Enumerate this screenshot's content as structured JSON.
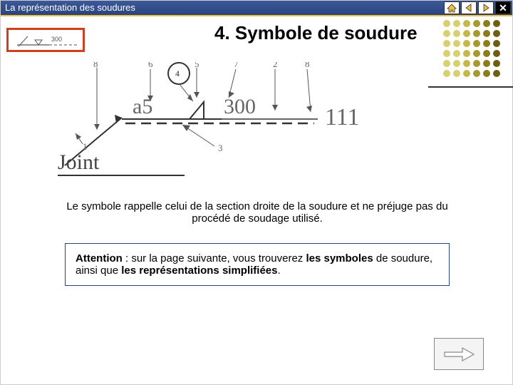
{
  "titlebar": {
    "title": "La représentation des soudures"
  },
  "heading": "4. Symbole de soudure",
  "diagram": {
    "a5": "a5",
    "d300": "300",
    "d111": "111",
    "numbers": {
      "n1": "1",
      "n2": "2",
      "n3": "3",
      "n4": "4",
      "n5": "5",
      "n6": "6",
      "n7": "7",
      "n8l": "8",
      "n8r": "8"
    },
    "joint_label": "Joint"
  },
  "description": "Le symbole rappelle celui de la section droite de la soudure et ne préjuge pas du procédé de soudage utilisé.",
  "attention": {
    "lead": "Attention",
    "part1": " : sur la page suivante, vous trouverez ",
    "bold1": "les symboles",
    "part2": " de soudure, ainsi que ",
    "bold2": "les représentations simplifiées",
    "part3": "."
  },
  "dots": {
    "colors": [
      "#d8d070",
      "#d8d070",
      "#c4b84a",
      "#a89830",
      "#8c7c1c",
      "#6e5e12"
    ],
    "rows": 6,
    "cols": 6,
    "r": 5,
    "gap": 14
  },
  "colors": {
    "titlebar_grad_top": "#3b5998",
    "titlebar_grad_bottom": "#2a4480",
    "yellow_accent": "#f0c040",
    "thumb_border": "#d04020",
    "box_border": "#2a4480",
    "dim_text": "#666666",
    "line": "#333333"
  }
}
